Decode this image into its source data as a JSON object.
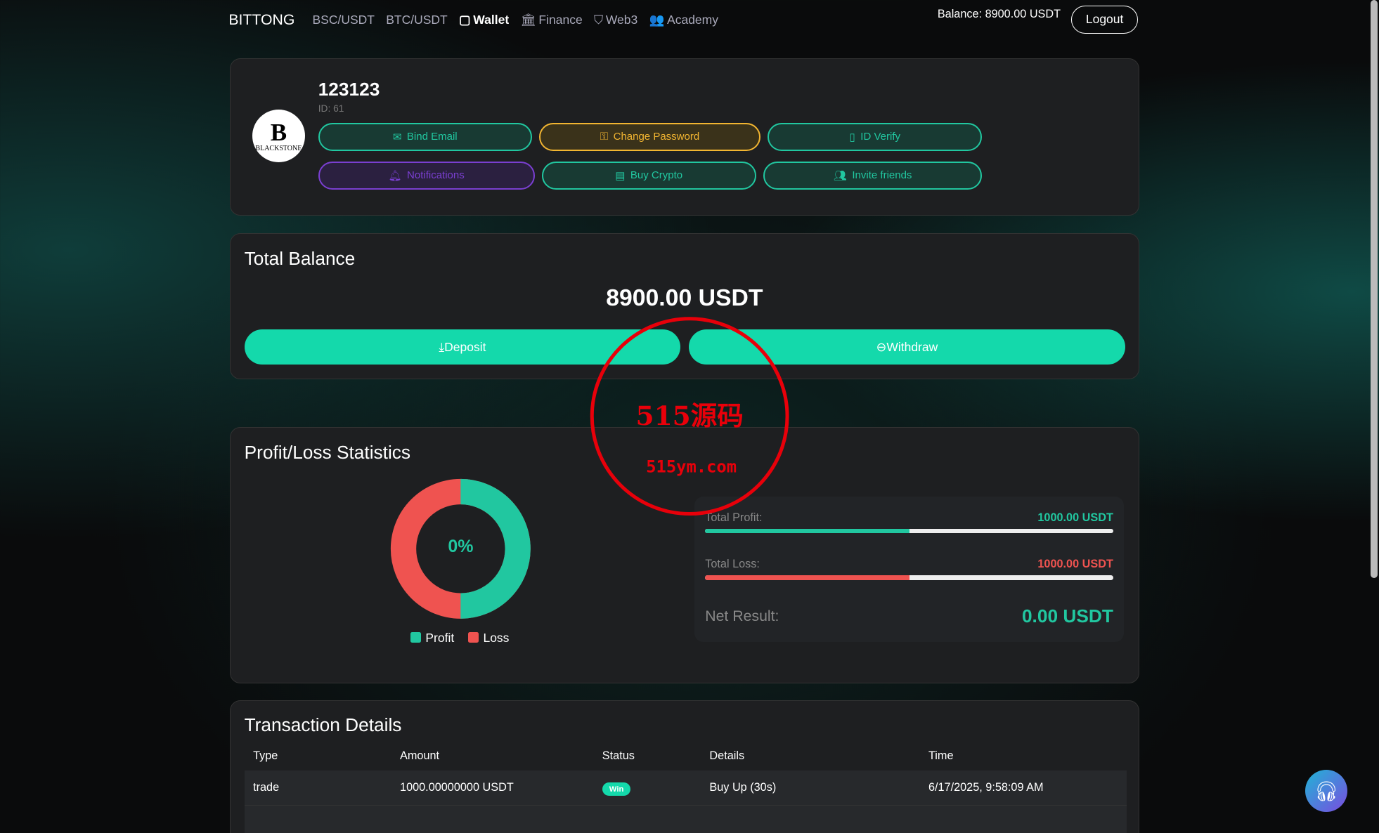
{
  "nav": {
    "brand": "BITTONG",
    "items": [
      {
        "label": "BSC/USDT",
        "icon": ""
      },
      {
        "label": "BTC/USDT",
        "icon": ""
      },
      {
        "label": "Wallet",
        "icon": "wallet-icon",
        "active": true
      },
      {
        "label": "Finance",
        "icon": "bank-icon"
      },
      {
        "label": "Web3",
        "icon": "shield-icon"
      },
      {
        "label": "Academy",
        "icon": "people-icon"
      }
    ],
    "balance": "Balance: 8900.00 USDT",
    "logout": "Logout"
  },
  "profile": {
    "username": "123123",
    "id": "ID: 61",
    "avatar_text": "BLACKSTONE",
    "buttons": {
      "bind_email": "Bind Email",
      "change_password": "Change Password",
      "id_verify": "ID Verify",
      "notifications": "Notifications",
      "buy_crypto": "Buy Crypto",
      "invite": "Invite friends"
    }
  },
  "balance": {
    "title": "Total Balance",
    "amount": "8900.00 USDT",
    "deposit": "Deposit",
    "withdraw": "Withdraw"
  },
  "pl": {
    "title": "Profit/Loss Statistics",
    "center": "0%",
    "legend_profit": "Profit",
    "legend_loss": "Loss",
    "profit_label": "Total Profit:",
    "profit_value": "1000.00 USDT",
    "profit_fraction": 0.5,
    "loss_label": "Total Loss:",
    "loss_value": "1000.00 USDT",
    "loss_fraction": 0.5,
    "net_label": "Net Result:",
    "net_value": "0.00 USDT",
    "colors": {
      "profit": "#21c7a0",
      "loss": "#ef5350"
    }
  },
  "tx": {
    "title": "Transaction Details",
    "headers": [
      "Type",
      "Amount",
      "Status",
      "Details",
      "Time"
    ],
    "rows": [
      {
        "type": "trade",
        "amount": "1000.00000000 USDT",
        "status": "Win",
        "details": "Buy Up (30s)",
        "time": "6/17/2025, 9:58:09 AM"
      }
    ]
  },
  "watermark": {
    "text": "515源码",
    "sub": "515ym.com"
  }
}
